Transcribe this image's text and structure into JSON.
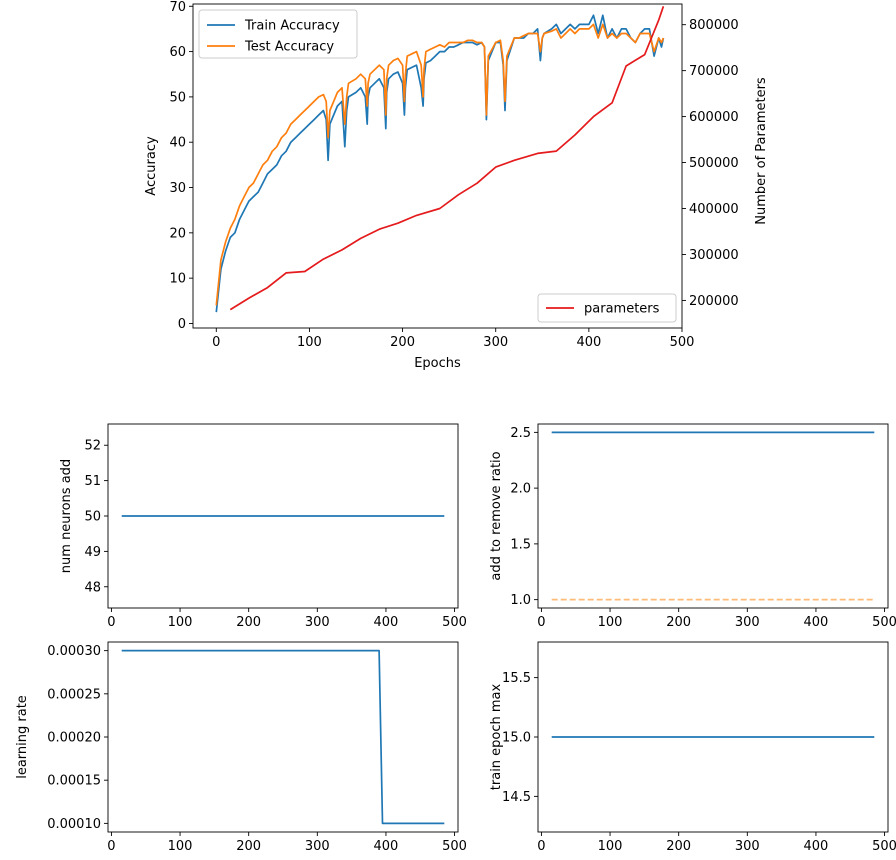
{
  "colors": {
    "train": "#1f77b4",
    "test": "#ff7f0e",
    "params": "#e41a1c",
    "hyper": "#1f77b4",
    "ref": "#ffbb78"
  },
  "chart_data": [
    {
      "id": "main",
      "type": "line",
      "xlabel": "Epochs",
      "ylabel": "Accuracy",
      "y2label": "Number of Parameters",
      "xlim": [
        -25,
        500
      ],
      "ylim": [
        -1,
        70.5
      ],
      "y2lim": [
        140000,
        845000
      ],
      "xticks": [
        0,
        100,
        200,
        300,
        400,
        500
      ],
      "yticks": [
        0,
        10,
        20,
        30,
        40,
        50,
        60,
        70
      ],
      "y2ticks": [
        200000,
        300000,
        400000,
        500000,
        600000,
        700000,
        800000
      ],
      "y2ticklabels": [
        "200000",
        "300000",
        "400000",
        "500000",
        "600000",
        "700000",
        "800000"
      ],
      "legend_upper": {
        "placement": "upper-left",
        "entries": [
          "Train Accuracy",
          "Test Accuracy"
        ]
      },
      "legend_lower": {
        "placement": "lower-right",
        "entries": [
          "parameters"
        ]
      },
      "series": [
        {
          "name": "Train Accuracy",
          "axis": "left",
          "x": [
            0,
            5,
            10,
            15,
            20,
            25,
            30,
            35,
            40,
            45,
            50,
            55,
            60,
            65,
            70,
            75,
            80,
            85,
            90,
            95,
            100,
            105,
            110,
            115,
            118,
            120,
            122,
            130,
            135,
            138,
            140,
            142,
            150,
            155,
            160,
            162,
            163,
            165,
            170,
            175,
            180,
            182,
            183,
            185,
            190,
            195,
            200,
            202,
            203,
            205,
            210,
            215,
            220,
            222,
            223,
            225,
            230,
            235,
            240,
            245,
            250,
            255,
            260,
            265,
            270,
            275,
            280,
            285,
            288,
            290,
            292,
            300,
            305,
            308,
            310,
            312,
            320,
            325,
            330,
            335,
            340,
            345,
            348,
            350,
            352,
            360,
            365,
            370,
            375,
            380,
            385,
            390,
            395,
            400,
            405,
            410,
            415,
            420,
            425,
            430,
            435,
            440,
            445,
            450,
            455,
            460,
            465,
            470,
            475,
            478,
            480
          ],
          "y": [
            2.5,
            12,
            16,
            19,
            20,
            23,
            25,
            27,
            28,
            29,
            31,
            33,
            34,
            35,
            37,
            38,
            40,
            41,
            42,
            43,
            44,
            45,
            46,
            47,
            45,
            36,
            44,
            48,
            49,
            39,
            47,
            50,
            51,
            52,
            50,
            44,
            50,
            52,
            53,
            54,
            52,
            43,
            51,
            54,
            55,
            55.5,
            53,
            46,
            52,
            56,
            56.5,
            57,
            52,
            48,
            54,
            57.5,
            58,
            59,
            60,
            60,
            61,
            61,
            61.5,
            62,
            62,
            62,
            61.5,
            62,
            61,
            45,
            58,
            62,
            62,
            57,
            47,
            58,
            63,
            63,
            63,
            64,
            64,
            65,
            58,
            63,
            64,
            65,
            66,
            64,
            65,
            66,
            65,
            66,
            66,
            66,
            68,
            64,
            68,
            63,
            65,
            63,
            65,
            65,
            63,
            62,
            64,
            65,
            65,
            59,
            63,
            61,
            63
          ]
        },
        {
          "name": "Test Accuracy",
          "axis": "left",
          "x": [
            0,
            5,
            10,
            15,
            20,
            25,
            30,
            35,
            40,
            45,
            50,
            55,
            60,
            65,
            70,
            75,
            80,
            85,
            90,
            95,
            100,
            105,
            110,
            115,
            118,
            120,
            122,
            130,
            135,
            138,
            140,
            142,
            150,
            155,
            160,
            162,
            163,
            165,
            170,
            175,
            180,
            182,
            183,
            185,
            190,
            195,
            200,
            202,
            203,
            205,
            210,
            215,
            220,
            222,
            223,
            225,
            230,
            235,
            240,
            245,
            250,
            255,
            260,
            265,
            270,
            275,
            280,
            285,
            288,
            290,
            292,
            300,
            305,
            308,
            310,
            312,
            320,
            325,
            330,
            335,
            340,
            345,
            348,
            350,
            352,
            360,
            365,
            370,
            375,
            380,
            385,
            390,
            395,
            400,
            405,
            410,
            415,
            420,
            425,
            430,
            435,
            440,
            445,
            450,
            455,
            460,
            465,
            470,
            475,
            478,
            480
          ],
          "y": [
            4,
            14,
            18,
            21,
            23,
            26,
            28,
            30,
            31,
            33,
            35,
            36,
            38,
            39,
            41,
            42,
            44,
            45,
            46,
            47,
            48,
            49,
            50,
            50.5,
            49,
            41,
            47,
            51,
            52,
            44,
            50,
            53,
            54,
            55,
            54,
            48,
            53,
            55,
            56,
            57,
            56,
            46,
            54,
            57,
            58,
            58.5,
            57,
            49,
            55,
            59,
            59.5,
            60,
            57,
            50,
            56,
            60,
            60.5,
            61,
            61.5,
            61,
            62,
            62,
            62,
            62,
            62.5,
            62.5,
            62,
            62,
            61,
            46,
            59,
            62,
            62.5,
            58,
            49,
            59,
            63,
            63,
            63.5,
            64,
            64,
            64,
            60,
            63,
            64,
            64.5,
            65,
            63,
            64,
            65,
            64,
            65,
            65,
            65,
            66,
            63,
            66,
            63,
            64,
            63,
            64,
            64,
            63,
            62,
            64,
            64,
            64,
            60,
            63,
            62,
            63
          ]
        },
        {
          "name": "parameters",
          "axis": "right",
          "x": [
            15,
            35,
            55,
            75,
            95,
            115,
            135,
            155,
            175,
            195,
            215,
            240,
            260,
            280,
            300,
            320,
            345,
            365,
            385,
            405,
            425,
            440,
            460,
            475,
            480
          ],
          "y": [
            180000,
            205000,
            228000,
            260000,
            263000,
            290000,
            310000,
            335000,
            355000,
            368000,
            385000,
            400000,
            430000,
            455000,
            490000,
            505000,
            520000,
            525000,
            560000,
            600000,
            630000,
            710000,
            735000,
            810000,
            840000
          ]
        }
      ]
    },
    {
      "id": "neurons",
      "type": "line",
      "ylabel": "num neurons add",
      "xlim": [
        -5,
        505
      ],
      "ylim": [
        47.4,
        52.6
      ],
      "xticks": [
        0,
        100,
        200,
        300,
        400,
        500
      ],
      "yticks": [
        48,
        49,
        50,
        51,
        52
      ],
      "series": [
        {
          "x": [
            15,
            485
          ],
          "y": [
            50,
            50
          ],
          "style": "solid"
        }
      ]
    },
    {
      "id": "ratio",
      "type": "line",
      "ylabel": "add to remove ratio",
      "xlim": [
        -5,
        505
      ],
      "ylim": [
        0.925,
        2.575
      ],
      "xticks": [
        0,
        100,
        200,
        300,
        400,
        500
      ],
      "yticks": [
        1.0,
        1.5,
        2.0,
        2.5
      ],
      "yticklabels": [
        "1.0",
        "1.5",
        "2.0",
        "2.5"
      ],
      "series": [
        {
          "x": [
            15,
            485
          ],
          "y": [
            2.5,
            2.5
          ],
          "style": "solid"
        },
        {
          "x": [
            15,
            485
          ],
          "y": [
            1.0,
            1.0
          ],
          "style": "dashed"
        }
      ]
    },
    {
      "id": "lr",
      "type": "line",
      "ylabel": "learning rate",
      "xlim": [
        -5,
        505
      ],
      "ylim": [
        9e-05,
        0.00031
      ],
      "xticks": [
        0,
        100,
        200,
        300,
        400,
        500
      ],
      "yticks": [
        0.0001,
        0.00015,
        0.0002,
        0.00025,
        0.0003
      ],
      "yticklabels": [
        "0.00010",
        "0.00015",
        "0.00020",
        "0.00025",
        "0.00030"
      ],
      "series": [
        {
          "x": [
            15,
            390,
            395,
            485
          ],
          "y": [
            0.0003,
            0.0003,
            0.0001,
            0.0001
          ],
          "style": "solid"
        }
      ]
    },
    {
      "id": "epoch",
      "type": "line",
      "ylabel": "train epoch max",
      "xlim": [
        -5,
        505
      ],
      "ylim": [
        14.2,
        15.8
      ],
      "xticks": [
        0,
        100,
        200,
        300,
        400,
        500
      ],
      "yticks": [
        14.5,
        15.0,
        15.5
      ],
      "yticklabels": [
        "14.5",
        "15.0",
        "15.5"
      ],
      "series": [
        {
          "x": [
            15,
            485
          ],
          "y": [
            15,
            15
          ],
          "style": "solid"
        }
      ]
    }
  ]
}
